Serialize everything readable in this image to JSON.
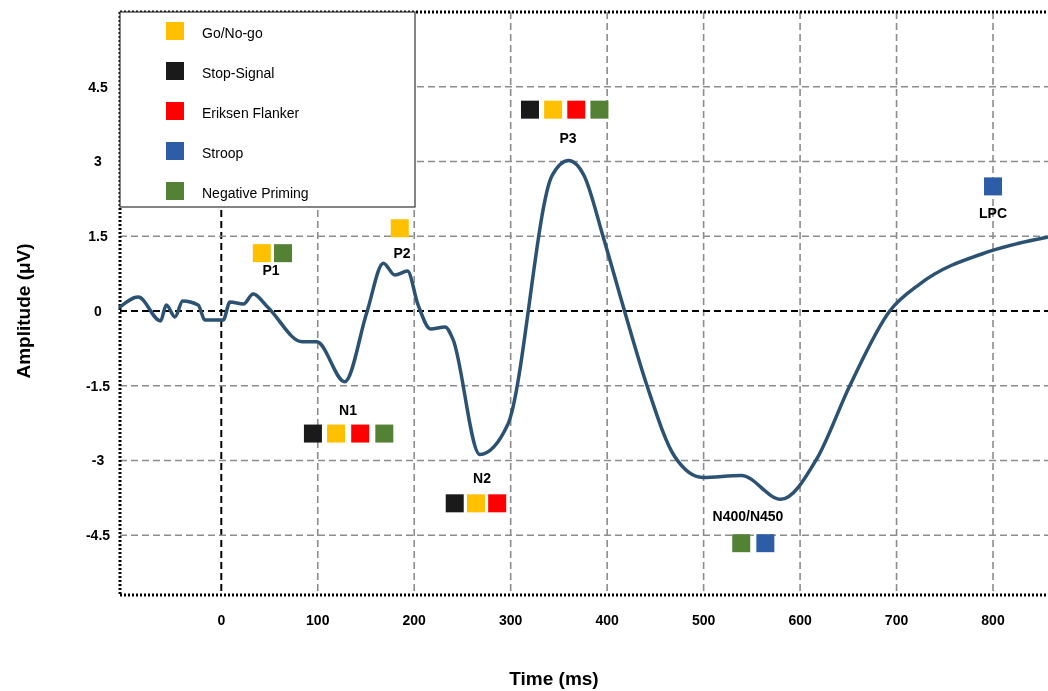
{
  "chart_data": {
    "type": "line",
    "xlabel": "Time (ms)",
    "ylabel": "Amplitude (μV)",
    "xlim": [
      -105,
      857
    ],
    "xticks": [
      0,
      100,
      200,
      300,
      400,
      500,
      600,
      700,
      800
    ],
    "ylim": [
      -5.7,
      6
    ],
    "yticks": [
      -4.5,
      -3,
      -1.5,
      0,
      1.5,
      3,
      4.5
    ],
    "grid": true,
    "legend": "top left",
    "line_style": "solid",
    "series": [
      {
        "color": "#2b5273",
        "x": [
          -105,
          -86,
          -63,
          -57,
          -48,
          -40,
          -24,
          -17,
          2,
          9,
          23,
          33,
          48,
          84,
          99,
          128,
          151,
          168,
          180,
          193,
          204,
          217,
          232,
          240,
          268,
          297,
          343,
          360,
          376,
          396,
          418,
          441,
          470,
          499,
          539,
          580,
          617,
          652,
          693,
          724,
          797,
          856
        ],
        "values": [
          0.08,
          0.28,
          -0.2,
          0.12,
          -0.12,
          0.2,
          0.12,
          -0.18,
          -0.18,
          0.18,
          0.14,
          0.34,
          0.08,
          -0.62,
          -0.62,
          -1.42,
          -0.02,
          0.96,
          0.72,
          0.8,
          0.12,
          -0.36,
          -0.32,
          -0.56,
          -2.88,
          -2.28,
          2.72,
          3.02,
          2.72,
          1.48,
          0,
          -1.48,
          -2.92,
          -3.34,
          -3.3,
          -3.78,
          -2.98,
          -1.48,
          0,
          0.54,
          1.2,
          1.48
        ]
      },
      {
        "type": "scatter",
        "marker": "square",
        "name": "Go/No-go",
        "color": "#ffc000",
        "x": [
          42,
          185,
          119,
          264,
          344
        ],
        "values": [
          1.16,
          1.66,
          -2.46,
          -3.86,
          4.04
        ]
      },
      {
        "type": "scatter",
        "marker": "square",
        "name": "Stop-Signal",
        "color": "#1a1a1a",
        "x": [
          95,
          242,
          320
        ],
        "values": [
          -2.46,
          -3.86,
          4.04
        ]
      },
      {
        "type": "scatter",
        "marker": "square",
        "name": "Eriksen Flanker",
        "color": "#ff0000",
        "x": [
          144,
          286,
          368
        ],
        "values": [
          -2.46,
          -3.86,
          4.04
        ]
      },
      {
        "type": "scatter",
        "marker": "square",
        "name": "Stroop",
        "color": "#2e5da8",
        "x": [
          564,
          800
        ],
        "values": [
          -4.66,
          2.5
        ]
      },
      {
        "type": "scatter",
        "marker": "square",
        "name": "Negative Priming",
        "color": "#548235",
        "x": [
          64,
          169,
          392,
          539
        ],
        "values": [
          1.16,
          -2.46,
          4.04,
          -4.66
        ]
      }
    ],
    "annotations": [
      "P1",
      "P2",
      "N1",
      "N2",
      "P3",
      "N400/N450",
      "LPC"
    ]
  }
}
